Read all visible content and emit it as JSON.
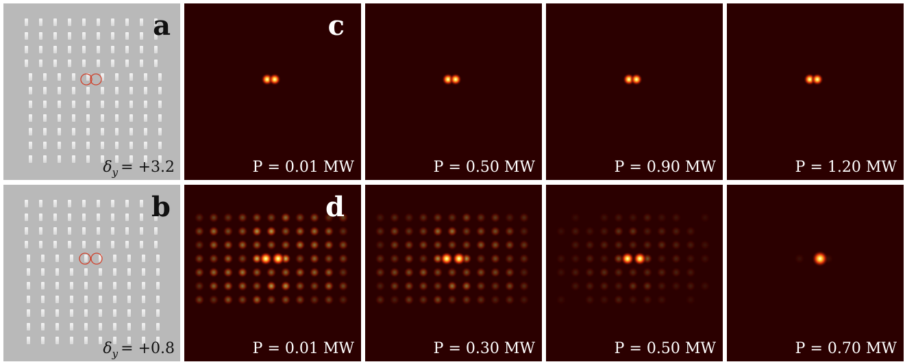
{
  "rows": [
    {
      "label": "a",
      "delta": {
        "symbol": "δ",
        "sub": "y",
        "text": "= +3.2"
      },
      "field_label": "c",
      "powers": [
        "P = 0.01 MW",
        "P = 0.50 MW",
        "P = 0.90 MW",
        "P = 1.20 MW"
      ]
    },
    {
      "label": "b",
      "delta": {
        "symbol": "δ",
        "sub": "y",
        "text": "= +0.8"
      },
      "field_label": "d",
      "powers": [
        "P = 0.01 MW",
        "P = 0.30 MW",
        "P = 0.50 MW",
        "P = 0.70 MW"
      ]
    }
  ]
}
